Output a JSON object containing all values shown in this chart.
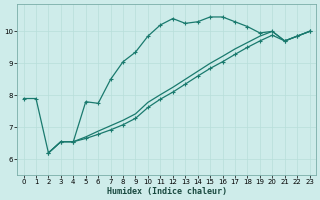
{
  "xlabel": "Humidex (Indice chaleur)",
  "bg_color": "#ceecea",
  "grid_color": "#b8deda",
  "line_color": "#1a7a6e",
  "xlim": [
    -0.5,
    23.5
  ],
  "ylim": [
    5.5,
    10.85
  ],
  "xticks": [
    0,
    1,
    2,
    3,
    4,
    5,
    6,
    7,
    8,
    9,
    10,
    11,
    12,
    13,
    14,
    15,
    16,
    17,
    18,
    19,
    20,
    21,
    22,
    23
  ],
  "yticks": [
    6,
    7,
    8,
    9,
    10
  ],
  "curve1_x": [
    0,
    1,
    2,
    3,
    4,
    5,
    6,
    7,
    8,
    9,
    10,
    11,
    12,
    13,
    14,
    15,
    16,
    17,
    18,
    19,
    20,
    21,
    22,
    23
  ],
  "curve1_y": [
    7.9,
    7.9,
    6.2,
    6.55,
    6.55,
    7.8,
    7.75,
    8.5,
    9.05,
    9.35,
    9.85,
    10.2,
    10.4,
    10.25,
    10.3,
    10.45,
    10.45,
    10.3,
    10.15,
    9.95,
    10.0,
    9.7,
    9.85,
    10.0
  ],
  "curve2_x": [
    2,
    3,
    4,
    5,
    6,
    7,
    8,
    9,
    10,
    11,
    12,
    13,
    14,
    15,
    16,
    17,
    18,
    19,
    20,
    21,
    22,
    23
  ],
  "curve2_y": [
    6.2,
    6.55,
    6.55,
    6.65,
    6.78,
    6.92,
    7.08,
    7.28,
    7.62,
    7.88,
    8.1,
    8.35,
    8.6,
    8.84,
    9.05,
    9.28,
    9.5,
    9.7,
    9.88,
    9.7,
    9.85,
    10.0
  ],
  "curve3_x": [
    2,
    3,
    4,
    5,
    6,
    7,
    8,
    9,
    10,
    11,
    12,
    13,
    14,
    15,
    16,
    17,
    18,
    19,
    20,
    21,
    22,
    23
  ],
  "curve3_y": [
    6.2,
    6.55,
    6.55,
    6.7,
    6.88,
    7.05,
    7.22,
    7.42,
    7.78,
    8.02,
    8.25,
    8.5,
    8.75,
    9.0,
    9.22,
    9.45,
    9.65,
    9.85,
    10.0,
    9.7,
    9.85,
    10.0
  ]
}
